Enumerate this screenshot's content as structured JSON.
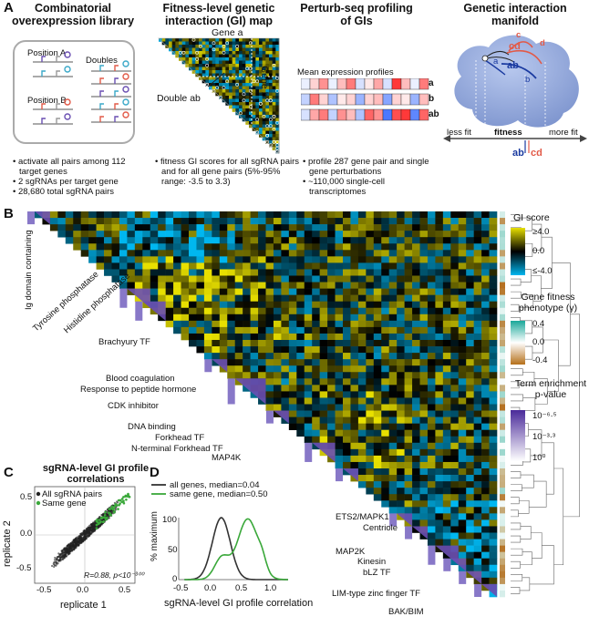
{
  "panelA": {
    "letter": "A",
    "col1": {
      "title": "Combinatorial overexpression library",
      "box_labels": [
        "Position A",
        "Position B",
        "Doubles"
      ],
      "bullets": [
        "activate all pairs among 112 target genes",
        "2 sgRNAs per target gene",
        "28,680 total sgRNA pairs"
      ]
    },
    "col2": {
      "title": "Fitness-level genetic interaction (GI) map",
      "gene_a": "Gene a",
      "gene_b": "Gene b",
      "double": "Double ab",
      "bullets": [
        "fitness GI scores for all sgRNA pairs and for all gene pairs (5%-95% range: -3.5 to 3.3)"
      ]
    },
    "col3": {
      "title": "Perturb-seq profiling of GIs",
      "profile_title": "Mean expression profiles",
      "rows": [
        "a",
        "b",
        "ab"
      ],
      "bullets": [
        "profile 287 gene pair and single gene perturbations",
        "~110,000 single-cell transcriptomes"
      ]
    },
    "col4": {
      "title": "Genetic interaction manifold",
      "letters": [
        "a",
        "b",
        "ab",
        "c",
        "d",
        "cd"
      ],
      "less_fit": "less fit",
      "fitness": "fitness",
      "more_fit": "more fit",
      "bottom_ab": "ab",
      "bottom_cd": "cd"
    }
  },
  "panelB": {
    "letter": "B",
    "diag_labels": [
      "Ig domain containing",
      "Tyrosine phosphatase",
      "Histidine phosphatase",
      "Brachyury TF",
      "Blood coagulation",
      "Response to peptide hormone",
      "CDK inhibitor",
      "DNA binding",
      "Forkhead TF",
      "N-terminal Forkhead TF",
      "MAP4K",
      "ETS2/MAPK1",
      "Centriole",
      "MAP2K",
      "Kinesin",
      "bLZ TF",
      "LIM-type zinc finger TF",
      "BAK/BIM"
    ],
    "legend_gi": {
      "title": "GI score",
      "ticks": [
        "≥4.0",
        "0.0",
        "≤-4.0"
      ]
    },
    "legend_fit": {
      "title": "Gene fitness phenotype (γ)",
      "ticks": [
        "0.4",
        "0.0",
        "-0.4"
      ]
    },
    "legend_term": {
      "title": "Term enrichment p-value",
      "ticks": [
        "10⁻⁶·⁵",
        "10⁻³·³",
        "10⁰"
      ]
    }
  },
  "panelC": {
    "letter": "C",
    "title": "sgRNA-level GI profile correlations",
    "legend": [
      "All sgRNA pairs",
      "Same gene"
    ],
    "annotation": "R=0.88, p<10⁻³⁰⁰",
    "xlabel": "replicate 1",
    "ylabel": "replicate 2",
    "xticks": [
      "-0.5",
      "0.0",
      "0.5"
    ],
    "yticks": [
      "-0.5",
      "0.0",
      "0.5"
    ]
  },
  "panelD": {
    "letter": "D",
    "legend": [
      "all genes, median=0.04",
      "same gene, median=0.50"
    ],
    "ylabel": "% maximum",
    "xlabel": "sgRNA-level GI profile correlation",
    "xticks": [
      "-0.5",
      "0.0",
      "0.5",
      "1.0"
    ],
    "yticks": [
      "0",
      "50",
      "100"
    ]
  },
  "colors": {
    "gi_pos": "#e8e000",
    "gi_neg": "#00b7f0",
    "term": "#6a4fb2",
    "same_gene": "#3aa83a",
    "manifold_body": "#8fa6d8",
    "manifold_red": "#e25a48"
  }
}
